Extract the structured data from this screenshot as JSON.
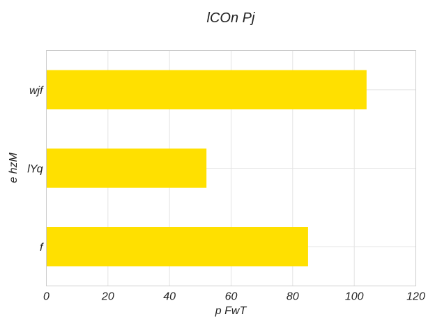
{
  "chart_data": {
    "type": "bar",
    "orientation": "horizontal",
    "title": "lCOn Pj",
    "xlabel": "p FwT",
    "ylabel": "e hzM",
    "categories": [
      "f",
      "lYq",
      "wjf"
    ],
    "values": [
      85,
      52,
      104
    ],
    "xlim": [
      0,
      120
    ],
    "xticks": [
      "0",
      "20",
      "40",
      "60",
      "80",
      "100",
      "120"
    ],
    "grid": true,
    "bar_color": "#FFE000",
    "grid_color": "#E3E3E3",
    "frame_color": "#CCCCCC"
  }
}
